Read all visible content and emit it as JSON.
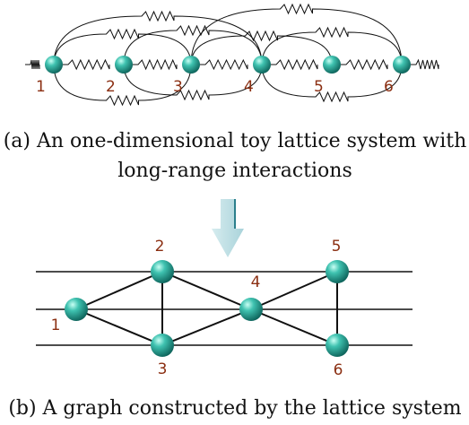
{
  "lattice": {
    "nodes": [
      {
        "label": "1"
      },
      {
        "label": "2"
      },
      {
        "label": "3"
      },
      {
        "label": "4"
      },
      {
        "label": "5"
      },
      {
        "label": "6"
      }
    ]
  },
  "caption_a": [
    "(a)  An one-dimensional toy lattice system with",
    "long-range interactions"
  ],
  "graph": {
    "nodes": [
      {
        "label": "1"
      },
      {
        "label": "2"
      },
      {
        "label": "3"
      },
      {
        "label": "4"
      },
      {
        "label": "5"
      },
      {
        "label": "6"
      }
    ]
  },
  "caption_b": "(b)  A graph constructed by the lattice system"
}
